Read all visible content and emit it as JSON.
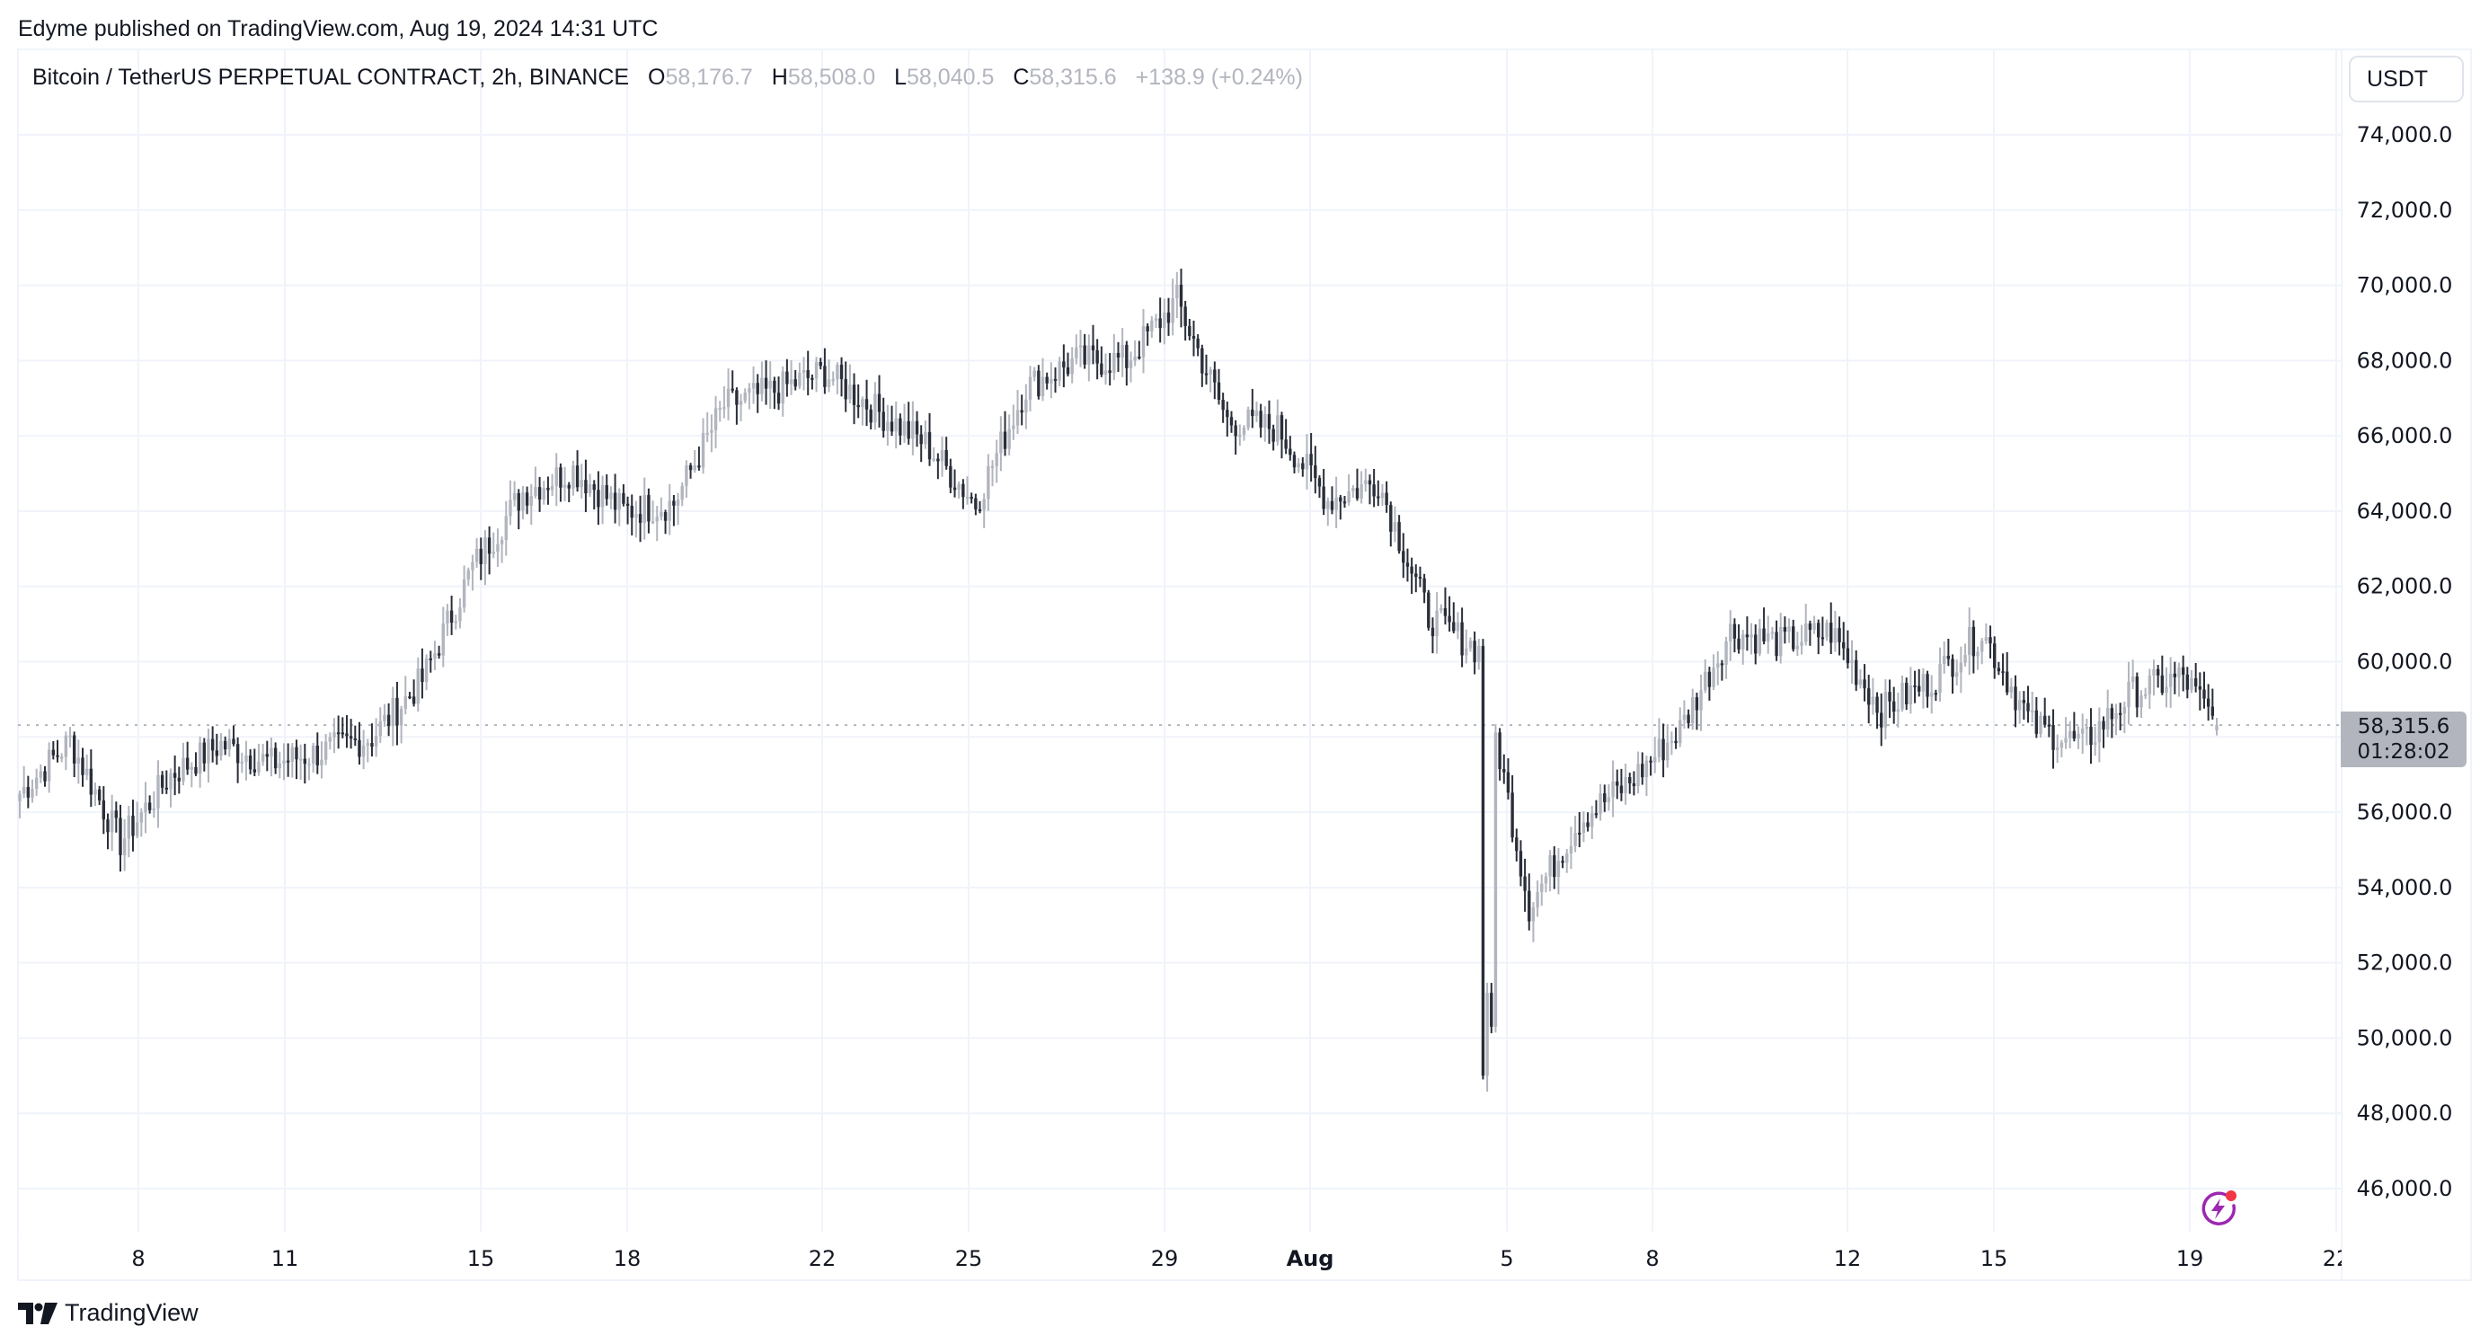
{
  "header": {
    "published_by": "Edyme published on TradingView.com, Aug 19, 2024 14:31 UTC"
  },
  "legend": {
    "symbol": "Bitcoin / TetherUS PERPETUAL CONTRACT, 2h, BINANCE",
    "open_label": "O",
    "open": "58,176.7",
    "high_label": "H",
    "high": "58,508.0",
    "low_label": "L",
    "low": "58,040.5",
    "close_label": "C",
    "close": "58,315.6",
    "change": "+138.9 (+0.24%)"
  },
  "price_axis": {
    "currency": "USDT",
    "ticks": [
      "74,000.0",
      "72,000.0",
      "70,000.0",
      "68,000.0",
      "66,000.0",
      "64,000.0",
      "62,000.0",
      "60,000.0",
      "56,000.0",
      "54,000.0",
      "52,000.0",
      "50,000.0",
      "48,000.0",
      "46,000.0"
    ],
    "last_price": "58,315.6",
    "countdown": "01:28:02"
  },
  "time_axis": {
    "labels": [
      "8",
      "11",
      "15",
      "18",
      "22",
      "25",
      "29",
      "Aug",
      "5",
      "8",
      "12",
      "15",
      "19",
      "22"
    ]
  },
  "footer": {
    "brand": "TradingView"
  },
  "colors": {
    "up": "#b2b5be",
    "down": "#2a2e39",
    "grid": "#f0f3fa",
    "last_price_line": "#b2b5be",
    "bolt_icon": "#9c27b0",
    "notification_dot": "#f23645"
  },
  "chart_data": {
    "type": "candlestick",
    "title": "Bitcoin / TetherUS PERPETUAL CONTRACT, 2h, BINANCE",
    "interval": "2h",
    "xlabel": "",
    "ylabel": "USDT",
    "ylim": [
      45000,
      75500
    ],
    "y_ticks": [
      46000,
      48000,
      50000,
      52000,
      54000,
      56000,
      58000,
      60000,
      62000,
      64000,
      66000,
      68000,
      70000,
      72000,
      74000
    ],
    "x_ticks": [
      "Jul 8",
      "Jul 11",
      "Jul 15",
      "Jul 18",
      "Jul 22",
      "Jul 25",
      "Jul 29",
      "Aug 1",
      "Aug 5",
      "Aug 8",
      "Aug 12",
      "Aug 15",
      "Aug 19",
      "Aug 22"
    ],
    "grid": true,
    "last": {
      "open": 58176.7,
      "high": 58508.0,
      "low": 58040.5,
      "close": 58315.6,
      "change": 138.9,
      "change_pct": 0.24
    },
    "approx_close_path": [
      {
        "date": "Jul 6",
        "close": 56500
      },
      {
        "date": "Jul 7",
        "close": 57900
      },
      {
        "date": "Jul 8",
        "close": 55200
      },
      {
        "date": "Jul 9",
        "close": 57000
      },
      {
        "date": "Jul 10",
        "close": 57800
      },
      {
        "date": "Jul 11",
        "close": 57300
      },
      {
        "date": "Jul 12",
        "close": 57600
      },
      {
        "date": "Jul 13",
        "close": 58000
      },
      {
        "date": "Jul 14",
        "close": 59500
      },
      {
        "date": "Jul 15",
        "close": 62500
      },
      {
        "date": "Jul 16",
        "close": 64500
      },
      {
        "date": "Jul 17",
        "close": 65100
      },
      {
        "date": "Jul 18",
        "close": 64000
      },
      {
        "date": "Jul 19",
        "close": 64200
      },
      {
        "date": "Jul 20",
        "close": 66800
      },
      {
        "date": "Jul 21",
        "close": 67200
      },
      {
        "date": "Jul 22",
        "close": 67700
      },
      {
        "date": "Jul 23",
        "close": 66700
      },
      {
        "date": "Jul 24",
        "close": 65800
      },
      {
        "date": "Jul 25",
        "close": 64200
      },
      {
        "date": "Jul 26",
        "close": 67300
      },
      {
        "date": "Jul 27",
        "close": 68000
      },
      {
        "date": "Jul 28",
        "close": 68000
      },
      {
        "date": "Jul 29",
        "close": 69600
      },
      {
        "date": "Jul 30",
        "close": 66400
      },
      {
        "date": "Jul 31",
        "close": 66200
      },
      {
        "date": "Aug 1",
        "close": 64300
      },
      {
        "date": "Aug 2",
        "close": 64800
      },
      {
        "date": "Aug 3",
        "close": 61200
      },
      {
        "date": "Aug 4",
        "close": 60300
      },
      {
        "date": "Aug 5",
        "close": 53500
      },
      {
        "date": "Aug 6",
        "close": 55800
      },
      {
        "date": "Aug 7",
        "close": 56800
      },
      {
        "date": "Aug 8",
        "close": 58200
      },
      {
        "date": "Aug 9",
        "close": 60800
      },
      {
        "date": "Aug 10",
        "close": 60500
      },
      {
        "date": "Aug 11",
        "close": 60800
      },
      {
        "date": "Aug 12",
        "close": 58700
      },
      {
        "date": "Aug 13",
        "close": 59500
      },
      {
        "date": "Aug 14",
        "close": 60800
      },
      {
        "date": "Aug 15",
        "close": 58300
      },
      {
        "date": "Aug 16",
        "close": 57800
      },
      {
        "date": "Aug 17",
        "close": 59200
      },
      {
        "date": "Aug 18",
        "close": 59600
      },
      {
        "date": "Aug 19",
        "close": 58315.6
      }
    ],
    "notable": {
      "high": {
        "date": "Jul 29",
        "value": 70050
      },
      "low": {
        "date": "Aug 5",
        "value": 48900
      }
    }
  }
}
